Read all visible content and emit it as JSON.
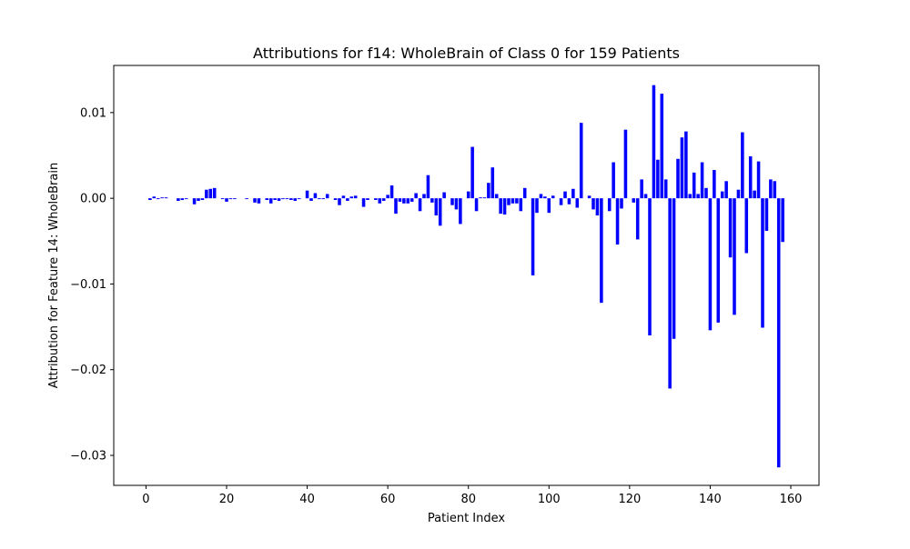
{
  "chart_data": {
    "type": "bar",
    "title": "Attributions for f14: WholeBrain of Class 0 for 159 Patients",
    "xlabel": "Patient Index",
    "ylabel": "Attribution for Feature 14: WholeBrain",
    "xlim": [
      -8,
      167
    ],
    "ylim": [
      -0.0335,
      0.0155
    ],
    "xticks": [
      0,
      20,
      40,
      60,
      80,
      100,
      120,
      140,
      160
    ],
    "yticks": [
      -0.03,
      -0.02,
      -0.01,
      0.0,
      0.01
    ],
    "xtick_labels": [
      "0",
      "20",
      "40",
      "60",
      "80",
      "100",
      "120",
      "140",
      "160"
    ],
    "ytick_labels": [
      "−0.03",
      "−0.02",
      "−0.01",
      "0.00",
      "0.01"
    ],
    "grid": false,
    "bar_color": "#0000ff",
    "x": [
      0,
      1,
      2,
      3,
      4,
      5,
      6,
      7,
      8,
      9,
      10,
      11,
      12,
      13,
      14,
      15,
      16,
      17,
      18,
      19,
      20,
      21,
      22,
      23,
      24,
      25,
      26,
      27,
      28,
      29,
      30,
      31,
      32,
      33,
      34,
      35,
      36,
      37,
      38,
      39,
      40,
      41,
      42,
      43,
      44,
      45,
      46,
      47,
      48,
      49,
      50,
      51,
      52,
      53,
      54,
      55,
      56,
      57,
      58,
      59,
      60,
      61,
      62,
      63,
      64,
      65,
      66,
      67,
      68,
      69,
      70,
      71,
      72,
      73,
      74,
      75,
      76,
      77,
      78,
      79,
      80,
      81,
      82,
      83,
      84,
      85,
      86,
      87,
      88,
      89,
      90,
      91,
      92,
      93,
      94,
      95,
      96,
      97,
      98,
      99,
      100,
      101,
      102,
      103,
      104,
      105,
      106,
      107,
      108,
      109,
      110,
      111,
      112,
      113,
      114,
      115,
      116,
      117,
      118,
      119,
      120,
      121,
      122,
      123,
      124,
      125,
      126,
      127,
      128,
      129,
      130,
      131,
      132,
      133,
      134,
      135,
      136,
      137,
      138,
      139,
      140,
      141,
      142,
      143,
      144,
      145,
      146,
      147,
      148,
      149,
      150,
      151,
      152,
      153,
      154,
      155,
      156,
      157,
      158
    ],
    "values": [
      0.0,
      -0.0002,
      0.0002,
      -0.0001,
      0.0001,
      0.0001,
      0.0,
      0.0,
      -0.0003,
      -0.0002,
      -0.0001,
      0.0,
      -0.0007,
      -0.0003,
      -0.0002,
      0.001,
      0.0011,
      0.0012,
      0.0,
      -0.0001,
      -0.0004,
      -0.0001,
      -0.0001,
      0.0,
      0.0,
      -0.0001,
      0.0,
      -0.0005,
      -0.0006,
      0.0,
      -0.0002,
      -0.0006,
      -0.0002,
      -0.0003,
      -0.0001,
      -0.0001,
      -0.0002,
      -0.0003,
      -0.0001,
      0.0,
      0.0009,
      -0.0003,
      0.0006,
      -0.0001,
      -0.0001,
      0.0005,
      0.0,
      -0.0002,
      -0.0008,
      0.0003,
      -0.0003,
      0.0002,
      0.0003,
      0.0,
      -0.001,
      -0.0002,
      0.0,
      -0.0002,
      -0.0006,
      -0.0003,
      0.0004,
      0.0015,
      -0.0018,
      -0.0004,
      -0.0006,
      -0.0006,
      -0.0004,
      0.0006,
      -0.0015,
      0.0005,
      0.0027,
      -0.0005,
      -0.002,
      -0.0032,
      0.0007,
      0.0,
      -0.0008,
      -0.0013,
      -0.003,
      0.0,
      0.0008,
      0.006,
      -0.0015,
      0.0001,
      0.0001,
      0.0018,
      0.0036,
      0.0005,
      -0.0018,
      -0.0019,
      -0.0008,
      -0.0006,
      -0.0006,
      -0.0015,
      0.0012,
      0.0,
      -0.009,
      -0.0017,
      0.0005,
      0.0002,
      -0.0017,
      0.0003,
      0.0,
      -0.0008,
      0.0008,
      -0.0007,
      0.0011,
      -0.0011,
      0.0088,
      0.0,
      0.0003,
      -0.0013,
      -0.002,
      -0.0122,
      0.0,
      -0.0015,
      0.0042,
      -0.0054,
      -0.0012,
      0.008,
      0.0,
      -0.0005,
      -0.0048,
      0.0022,
      0.0005,
      -0.016,
      0.0132,
      0.0045,
      0.0122,
      0.0022,
      -0.0222,
      -0.0164,
      0.0046,
      0.0071,
      0.0078,
      0.0005,
      0.003,
      0.0005,
      0.0042,
      0.0012,
      -0.0154,
      0.0033,
      -0.0145,
      0.0008,
      0.002,
      -0.0069,
      -0.0136,
      0.001,
      0.0077,
      -0.0064,
      0.0049,
      0.0009,
      0.0043,
      -0.0151,
      -0.0038,
      0.0022,
      0.002,
      -0.0314,
      -0.0051
    ]
  }
}
